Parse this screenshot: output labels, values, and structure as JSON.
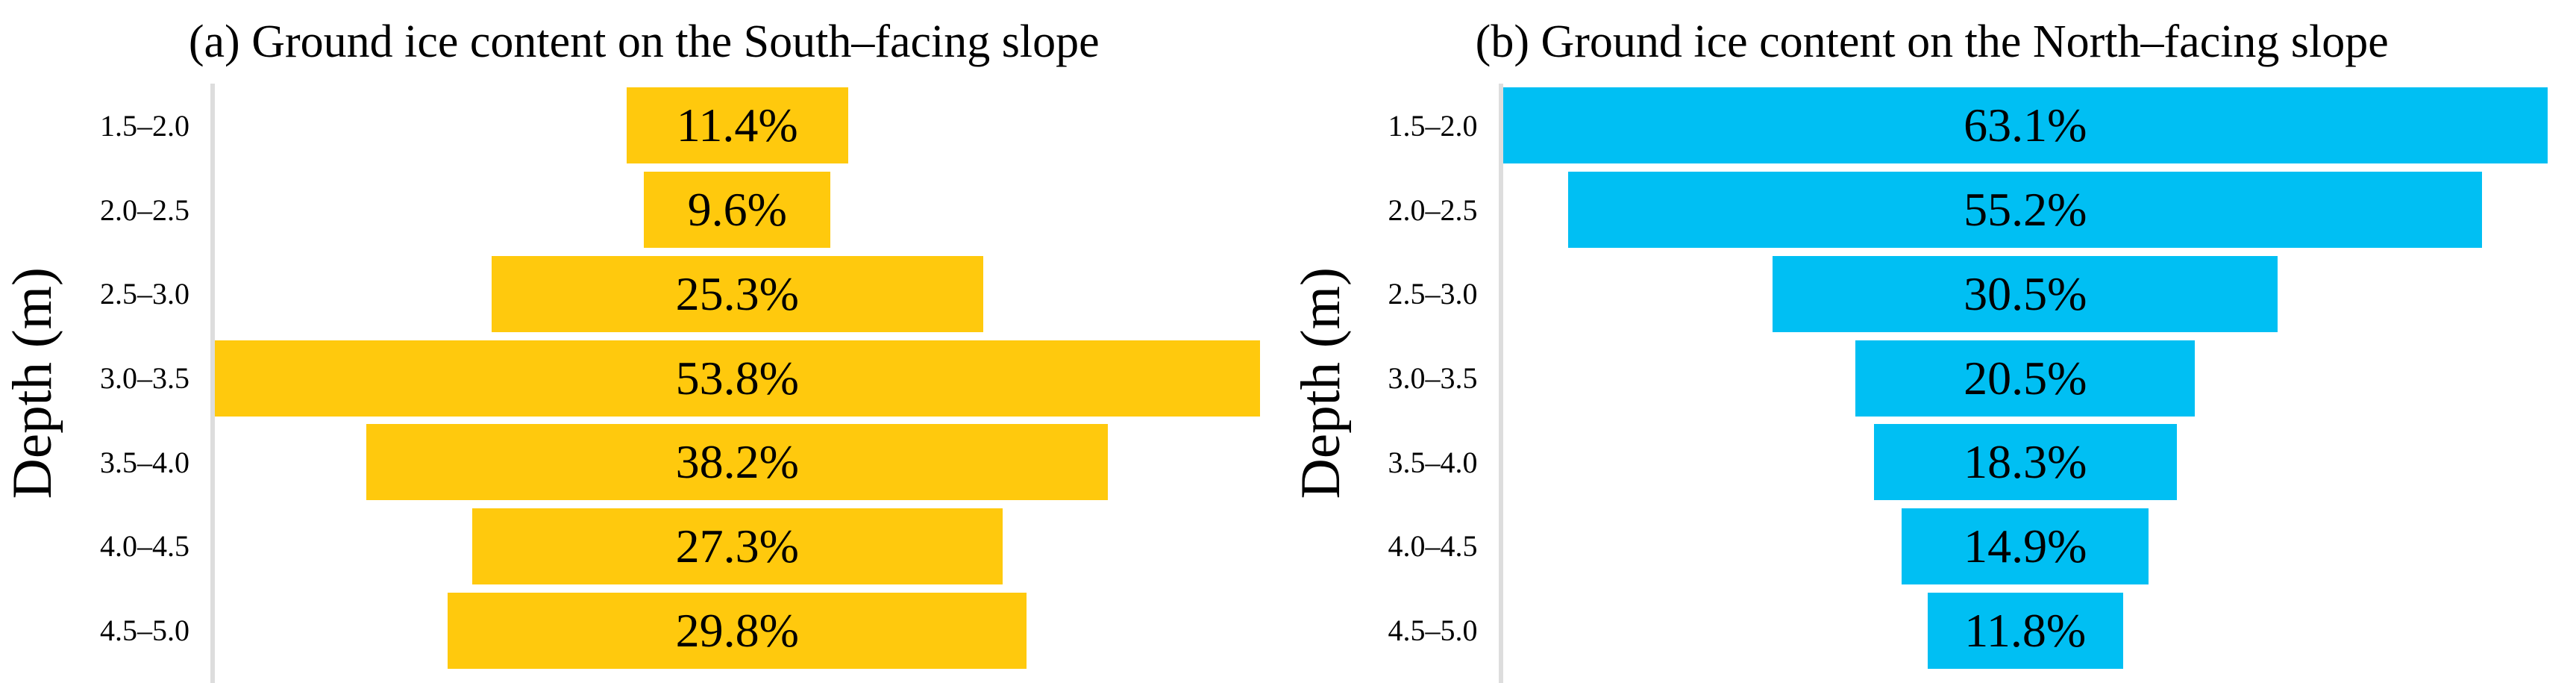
{
  "figure": {
    "background": "#ffffff",
    "axis_line_color": "#dddddd"
  },
  "chart_data": [
    {
      "type": "bar",
      "subtype": "centered-funnel",
      "orientation": "horizontal",
      "id": "south",
      "title": "(a) Ground ice content on the South–facing slope",
      "xlabel": "",
      "ylabel": "Depth (m)",
      "categories": [
        "1.5–2.0",
        "2.0–2.5",
        "2.5–3.0",
        "3.0–3.5",
        "3.5–4.0",
        "4.0–4.5",
        "4.5–5.0"
      ],
      "values": [
        11.4,
        9.6,
        25.3,
        53.8,
        38.2,
        27.3,
        29.8
      ],
      "data_labels": [
        "11.4%",
        "9.6%",
        "25.3%",
        "38.2%",
        "27.3%",
        "29.8%",
        "53.8%"
      ],
      "data_labels_ordered": [
        "11.4%",
        "9.6%",
        "25.3%",
        "53.8%",
        "38.2%",
        "27.3%",
        "29.8%"
      ],
      "bar_color": "#FFC90D",
      "label_color": "#000000",
      "axis_line_color": "#dddddd",
      "legend": "none",
      "grid": "off",
      "layout_note": "bars centered on plot midline; width proportional to value; max value (53.8%) spans full plot width"
    },
    {
      "type": "bar",
      "subtype": "centered-funnel",
      "orientation": "horizontal",
      "id": "north",
      "title": "(b) Ground ice content on the North–facing slope",
      "xlabel": "",
      "ylabel": "Depth (m)",
      "categories": [
        "1.5–2.0",
        "2.0–2.5",
        "2.5–3.0",
        "3.0–3.5",
        "3.5–4.0",
        "4.0–4.5",
        "4.5–5.0"
      ],
      "values": [
        63.1,
        55.2,
        30.5,
        20.5,
        18.3,
        14.9,
        11.8
      ],
      "data_labels_ordered": [
        "63.1%",
        "55.2%",
        "30.5%",
        "20.5%",
        "18.3%",
        "14.9%",
        "11.8%"
      ],
      "bar_color": "#00BFF3",
      "label_color": "#000000",
      "axis_line_color": "#dddddd",
      "legend": "none",
      "grid": "off",
      "layout_note": "bars centered on plot midline; width proportional to value; max value (63.1%) spans full plot width"
    }
  ]
}
